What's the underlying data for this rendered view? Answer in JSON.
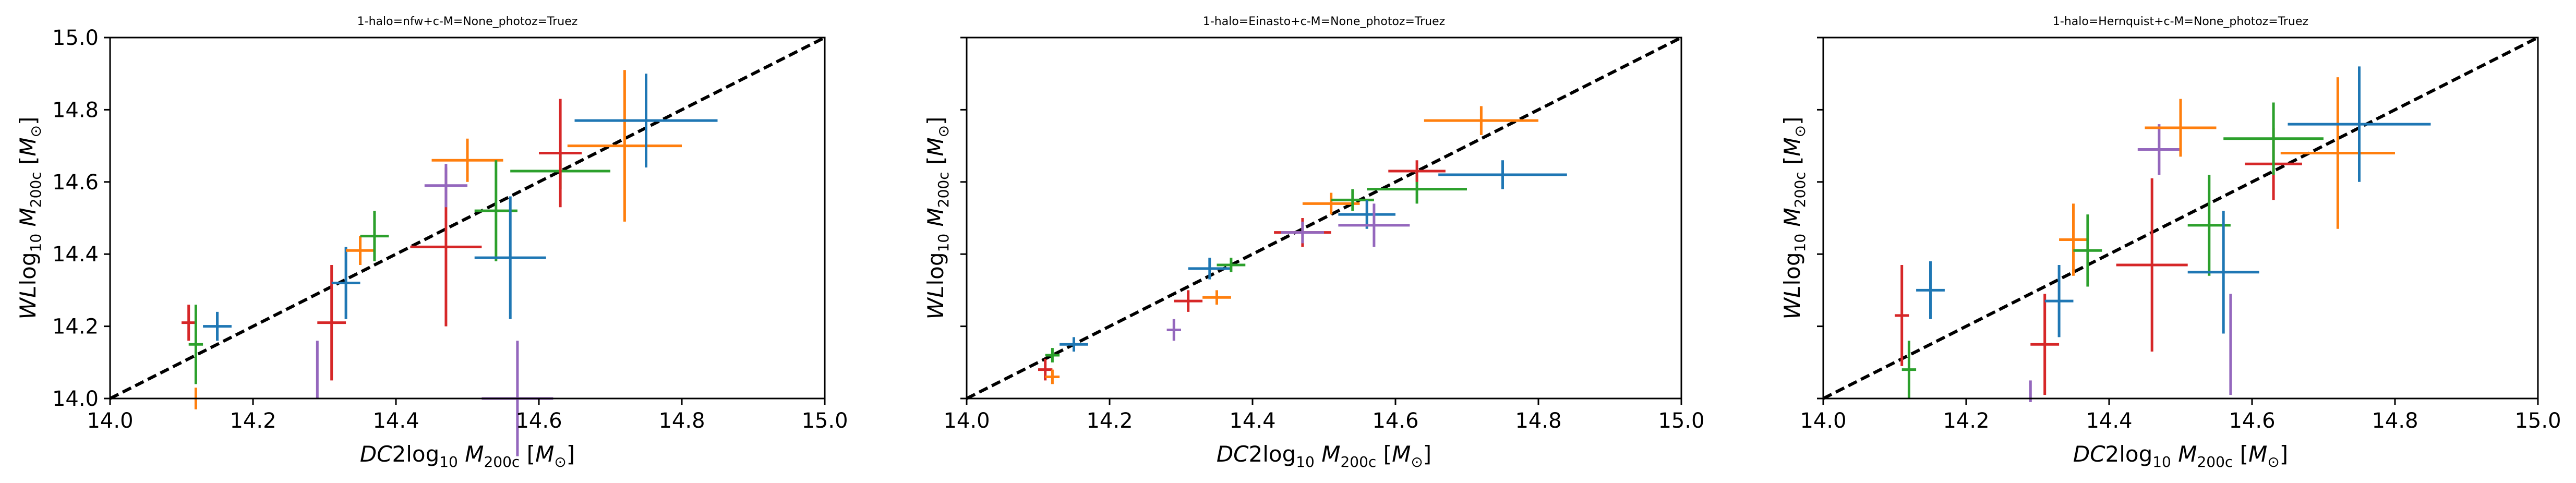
{
  "figure": {
    "panels": [
      {
        "title": "1-halo=nfw+c-M=None_photoz=Truez"
      },
      {
        "title": "1-halo=Einasto+c-M=None_photoz=Truez"
      },
      {
        "title": "1-halo=Hernquist+c-M=None_photoz=Truez"
      }
    ]
  },
  "chart_data": [
    {
      "type": "scatter",
      "title": "1-halo=nfw+c-M=None_photoz=Truez",
      "xlabel": "DC2log10 M200c [M⊙]",
      "ylabel": "WLlog10 M200c [M⊙]",
      "xlim": [
        14.0,
        15.0
      ],
      "ylim": [
        14.0,
        15.0
      ],
      "xticks": [
        "14.0",
        "14.2",
        "14.4",
        "14.6",
        "14.8",
        "15.0"
      ],
      "yticks": [
        "14.0",
        "14.2",
        "14.4",
        "14.6",
        "14.8",
        "15.0"
      ],
      "reference_line": {
        "style": "dashed",
        "color": "#000000",
        "from": [
          14.0,
          14.0
        ],
        "to": [
          15.0,
          15.0
        ]
      },
      "grid": false,
      "points": [
        {
          "color": "#d62728",
          "x": 14.11,
          "xerr": 0.01,
          "y": 14.21,
          "yerr": 0.05
        },
        {
          "color": "#ff7f0e",
          "x": 14.12,
          "xerr": 0.0,
          "y": 14.0,
          "yerr": 0.03
        },
        {
          "color": "#2ca02c",
          "x": 14.12,
          "xerr": 0.01,
          "y": 14.15,
          "yerr": 0.11
        },
        {
          "color": "#1f77b4",
          "x": 14.15,
          "xerr": 0.02,
          "y": 14.2,
          "yerr": 0.04
        },
        {
          "color": "#9467bd",
          "x": 14.29,
          "xerr": 0.0,
          "y": 14.08,
          "yerr": 0.08
        },
        {
          "color": "#d62728",
          "x": 14.31,
          "xerr": 0.02,
          "y": 14.21,
          "yerr": 0.16
        },
        {
          "color": "#1f77b4",
          "x": 14.33,
          "xerr": 0.02,
          "y": 14.32,
          "yerr": 0.1
        },
        {
          "color": "#ff7f0e",
          "x": 14.35,
          "xerr": 0.02,
          "y": 14.41,
          "yerr": 0.04
        },
        {
          "color": "#2ca02c",
          "x": 14.37,
          "xerr": 0.02,
          "y": 14.45,
          "yerr": 0.07
        },
        {
          "color": "#d62728",
          "x": 14.47,
          "xerr": 0.05,
          "y": 14.42,
          "yerr": 0.22
        },
        {
          "color": "#9467bd",
          "x": 14.47,
          "xerr": 0.03,
          "y": 14.59,
          "yerr": 0.06
        },
        {
          "color": "#ff7f0e",
          "x": 14.5,
          "xerr": 0.05,
          "y": 14.66,
          "yerr": 0.06
        },
        {
          "color": "#2ca02c",
          "x": 14.54,
          "xerr": 0.03,
          "y": 14.52,
          "yerr": 0.14
        },
        {
          "color": "#1f77b4",
          "x": 14.56,
          "xerr": 0.05,
          "y": 14.39,
          "yerr": 0.17
        },
        {
          "color": "#9467bd",
          "x": 14.57,
          "xerr": 0.05,
          "y": 14.0,
          "yerr": 0.16
        },
        {
          "color": "#2ca02c",
          "x": 14.63,
          "xerr": 0.07,
          "y": 14.63,
          "yerr": 0.05
        },
        {
          "color": "#d62728",
          "x": 14.63,
          "xerr": 0.03,
          "y": 14.68,
          "yerr": 0.15
        },
        {
          "color": "#ff7f0e",
          "x": 14.72,
          "xerr": 0.08,
          "y": 14.7,
          "yerr": 0.21
        },
        {
          "color": "#1f77b4",
          "x": 14.75,
          "xerr": 0.1,
          "y": 14.77,
          "yerr": 0.13
        }
      ]
    },
    {
      "type": "scatter",
      "title": "1-halo=Einasto+c-M=None_photoz=Truez",
      "xlabel": "DC2log10 M200c [M⊙]",
      "ylabel": "WLlog10 M200c [M⊙]",
      "xlim": [
        14.0,
        15.0
      ],
      "ylim": [
        14.0,
        15.0
      ],
      "xticks": [
        "14.0",
        "14.2",
        "14.4",
        "14.6",
        "14.8",
        "15.0"
      ],
      "yticks": [],
      "reference_line": {
        "style": "dashed",
        "color": "#000000",
        "from": [
          14.0,
          14.0
        ],
        "to": [
          15.0,
          15.0
        ]
      },
      "grid": false,
      "points": [
        {
          "color": "#d62728",
          "x": 14.11,
          "xerr": 0.01,
          "y": 14.08,
          "yerr": 0.03
        },
        {
          "color": "#ff7f0e",
          "x": 14.12,
          "xerr": 0.01,
          "y": 14.06,
          "yerr": 0.02
        },
        {
          "color": "#2ca02c",
          "x": 14.12,
          "xerr": 0.01,
          "y": 14.12,
          "yerr": 0.02
        },
        {
          "color": "#1f77b4",
          "x": 14.15,
          "xerr": 0.02,
          "y": 14.15,
          "yerr": 0.02
        },
        {
          "color": "#9467bd",
          "x": 14.29,
          "xerr": 0.01,
          "y": 14.19,
          "yerr": 0.03
        },
        {
          "color": "#d62728",
          "x": 14.31,
          "xerr": 0.02,
          "y": 14.27,
          "yerr": 0.03
        },
        {
          "color": "#ff7f0e",
          "x": 14.35,
          "xerr": 0.02,
          "y": 14.28,
          "yerr": 0.02
        },
        {
          "color": "#1f77b4",
          "x": 14.34,
          "xerr": 0.03,
          "y": 14.36,
          "yerr": 0.03
        },
        {
          "color": "#2ca02c",
          "x": 14.37,
          "xerr": 0.02,
          "y": 14.37,
          "yerr": 0.02
        },
        {
          "color": "#d62728",
          "x": 14.47,
          "xerr": 0.04,
          "y": 14.46,
          "yerr": 0.04
        },
        {
          "color": "#9467bd",
          "x": 14.47,
          "xerr": 0.03,
          "y": 14.46,
          "yerr": 0.03
        },
        {
          "color": "#ff7f0e",
          "x": 14.51,
          "xerr": 0.04,
          "y": 14.54,
          "yerr": 0.03
        },
        {
          "color": "#2ca02c",
          "x": 14.54,
          "xerr": 0.03,
          "y": 14.55,
          "yerr": 0.03
        },
        {
          "color": "#1f77b4",
          "x": 14.56,
          "xerr": 0.04,
          "y": 14.51,
          "yerr": 0.04
        },
        {
          "color": "#9467bd",
          "x": 14.57,
          "xerr": 0.05,
          "y": 14.48,
          "yerr": 0.06
        },
        {
          "color": "#2ca02c",
          "x": 14.63,
          "xerr": 0.07,
          "y": 14.58,
          "yerr": 0.04
        },
        {
          "color": "#d62728",
          "x": 14.63,
          "xerr": 0.04,
          "y": 14.63,
          "yerr": 0.03
        },
        {
          "color": "#ff7f0e",
          "x": 14.72,
          "xerr": 0.08,
          "y": 14.77,
          "yerr": 0.04
        },
        {
          "color": "#1f77b4",
          "x": 14.75,
          "xerr": 0.09,
          "y": 14.62,
          "yerr": 0.04
        }
      ]
    },
    {
      "type": "scatter",
      "title": "1-halo=Hernquist+c-M=None_photoz=Truez",
      "xlabel": "DC2log10 M200c [M⊙]",
      "ylabel": "WLlog10 M200c [M⊙]",
      "xlim": [
        14.0,
        15.0
      ],
      "ylim": [
        14.0,
        15.0
      ],
      "xticks": [
        "14.0",
        "14.2",
        "14.4",
        "14.6",
        "14.8",
        "15.0"
      ],
      "yticks": [],
      "reference_line": {
        "style": "dashed",
        "color": "#000000",
        "from": [
          14.0,
          14.0
        ],
        "to": [
          15.0,
          15.0
        ]
      },
      "grid": false,
      "points": [
        {
          "color": "#d62728",
          "x": 14.11,
          "xerr": 0.01,
          "y": 14.23,
          "yerr": 0.14
        },
        {
          "color": "#2ca02c",
          "x": 14.12,
          "xerr": 0.01,
          "y": 14.08,
          "yerr": 0.08
        },
        {
          "color": "#1f77b4",
          "x": 14.15,
          "xerr": 0.02,
          "y": 14.3,
          "yerr": 0.08
        },
        {
          "color": "#9467bd",
          "x": 14.29,
          "xerr": 0.0,
          "y": 14.02,
          "yerr": 0.03
        },
        {
          "color": "#d62728",
          "x": 14.31,
          "xerr": 0.02,
          "y": 14.15,
          "yerr": 0.14
        },
        {
          "color": "#1f77b4",
          "x": 14.33,
          "xerr": 0.02,
          "y": 14.27,
          "yerr": 0.1
        },
        {
          "color": "#ff7f0e",
          "x": 14.35,
          "xerr": 0.02,
          "y": 14.44,
          "yerr": 0.1
        },
        {
          "color": "#2ca02c",
          "x": 14.37,
          "xerr": 0.02,
          "y": 14.41,
          "yerr": 0.1
        },
        {
          "color": "#d62728",
          "x": 14.46,
          "xerr": 0.05,
          "y": 14.37,
          "yerr": 0.24
        },
        {
          "color": "#9467bd",
          "x": 14.47,
          "xerr": 0.03,
          "y": 14.69,
          "yerr": 0.07
        },
        {
          "color": "#ff7f0e",
          "x": 14.5,
          "xerr": 0.05,
          "y": 14.75,
          "yerr": 0.08
        },
        {
          "color": "#2ca02c",
          "x": 14.54,
          "xerr": 0.03,
          "y": 14.48,
          "yerr": 0.14
        },
        {
          "color": "#1f77b4",
          "x": 14.56,
          "xerr": 0.05,
          "y": 14.35,
          "yerr": 0.17
        },
        {
          "color": "#9467bd",
          "x": 14.57,
          "xerr": 0.0,
          "y": 14.15,
          "yerr": 0.14
        },
        {
          "color": "#d62728",
          "x": 14.63,
          "xerr": 0.04,
          "y": 14.65,
          "yerr": 0.1
        },
        {
          "color": "#2ca02c",
          "x": 14.63,
          "xerr": 0.07,
          "y": 14.72,
          "yerr": 0.1
        },
        {
          "color": "#ff7f0e",
          "x": 14.72,
          "xerr": 0.08,
          "y": 14.68,
          "yerr": 0.21
        },
        {
          "color": "#1f77b4",
          "x": 14.75,
          "xerr": 0.1,
          "y": 14.76,
          "yerr": 0.16
        }
      ]
    }
  ]
}
